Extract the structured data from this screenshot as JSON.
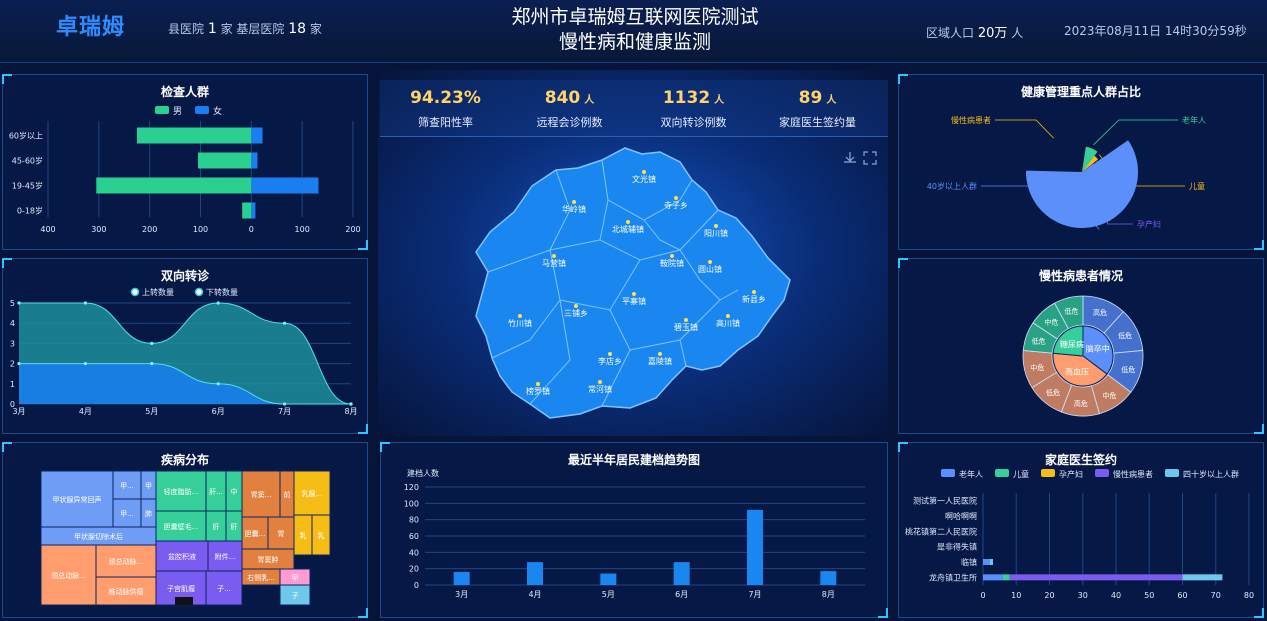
{
  "header": {
    "logo": "卓瑞姆",
    "hosp_prefix": "县医院",
    "county_count": "1",
    "hosp_mid": "家 基层医院",
    "base_count": "18",
    "hosp_suffix": "家",
    "title_line1": "郑州市卓瑞姆互联网医院测试",
    "title_line2": "慢性病和健康监测",
    "pop_prefix": "区域人口",
    "pop_value": "20万",
    "pop_suffix": "人",
    "datetime": "2023年08月11日 14时30分59秒"
  },
  "kpis": [
    {
      "value": "94.23%",
      "unit": "",
      "label": "筛查阳性率"
    },
    {
      "value": "840",
      "unit": "人",
      "label": "远程会诊例数"
    },
    {
      "value": "1132",
      "unit": "人",
      "label": "双向转诊例数"
    },
    {
      "value": "89",
      "unit": "人",
      "label": "家庭医生签约量"
    }
  ],
  "panels": {
    "exam": "检查人群",
    "referral": "双向转诊",
    "disease": "疾病分布",
    "keypop": "健康管理重点人群占比",
    "chronic": "慢性病患者情况",
    "trend": "最近半年居民建档趋势图",
    "family": "家庭医生签约"
  },
  "chart_data": [
    {
      "id": "exam",
      "type": "bar",
      "orientation": "horizontal",
      "title": "检查人群",
      "categories": [
        "60岁以上",
        "45-60岁",
        "19-45岁",
        "0-18岁"
      ],
      "series": [
        {
          "name": "男",
          "values": [
            -225,
            -105,
            -305,
            -18
          ],
          "color": "#29d08f"
        },
        {
          "name": "女",
          "values": [
            22,
            12,
            132,
            8
          ],
          "color": "#1a7ef0"
        }
      ],
      "xticks": [
        "400",
        "300",
        "200",
        "100",
        "0",
        "100",
        "200"
      ],
      "xlim": [
        -400,
        200
      ]
    },
    {
      "id": "referral",
      "type": "area",
      "title": "双向转诊",
      "categories": [
        "3月",
        "4月",
        "5月",
        "6月",
        "7月",
        "8月"
      ],
      "series": [
        {
          "name": "上转数量",
          "values": [
            5,
            5,
            3,
            5,
            4,
            0
          ],
          "color": "#1d8f9c"
        },
        {
          "name": "下转数量",
          "values": [
            2,
            2,
            2,
            1,
            0,
            0
          ],
          "color": "#1a7ef0"
        }
      ],
      "ylim": [
        0,
        5
      ],
      "yticks": [
        "0",
        "1",
        "2",
        "3",
        "4",
        "5"
      ]
    },
    {
      "id": "trend",
      "type": "bar",
      "title": "最近半年居民建档趋势图",
      "ylabel": "建档人数",
      "categories": [
        "3月",
        "4月",
        "5月",
        "6月",
        "7月",
        "8月"
      ],
      "values": [
        16,
        28,
        14,
        28,
        92,
        17
      ],
      "ylim": [
        0,
        120
      ],
      "yticks": [
        "0",
        "20",
        "40",
        "60",
        "80",
        "100",
        "120"
      ]
    },
    {
      "id": "family",
      "type": "bar",
      "orientation": "horizontal",
      "stacked": true,
      "title": "家庭医生签约",
      "categories": [
        "测试第一人民医院",
        "啊哈啊啊",
        "桃花镇第二人民医院",
        "是非得失镇",
        "临镇",
        "龙舟镇卫生所"
      ],
      "series": [
        {
          "name": "老年人",
          "values": [
            0,
            0,
            0,
            0,
            2,
            6
          ],
          "color": "#5b8ff9"
        },
        {
          "name": "儿童",
          "values": [
            0,
            0,
            0,
            0,
            0,
            2
          ],
          "color": "#36cf9a"
        },
        {
          "name": "孕产妇",
          "values": [
            0,
            0,
            0,
            0,
            0,
            0
          ],
          "color": "#f6bd16"
        },
        {
          "name": "慢性病患者",
          "values": [
            0,
            0,
            0,
            0,
            0,
            52
          ],
          "color": "#7a5cf0"
        },
        {
          "name": "四十岁以上人群",
          "values": [
            0,
            0,
            0,
            0,
            1,
            12
          ],
          "color": "#6dc8ec"
        }
      ],
      "xlim": [
        0,
        80
      ],
      "xticks": [
        "0",
        "10",
        "20",
        "30",
        "40",
        "50",
        "60",
        "70",
        "80"
      ]
    },
    {
      "id": "keypop",
      "type": "pie",
      "title": "健康管理重点人群占比",
      "slices": [
        {
          "label": "老年人",
          "value": 8,
          "color": "#36cf9a"
        },
        {
          "label": "儿童",
          "value": 4,
          "color": "#f6bd16"
        },
        {
          "label": "孕产妇",
          "value": 1,
          "color": "#7a5cf0"
        },
        {
          "label": "40岁以上人群",
          "value": 60,
          "color": "#5b8ff9"
        },
        {
          "label": "慢性病患者",
          "value": 27,
          "color": "#ffffff"
        }
      ]
    },
    {
      "id": "chronic",
      "type": "pie",
      "title": "慢性病患者情况",
      "inner": [
        {
          "label": "脑卒中",
          "value": 30,
          "color": "#5b8ff9"
        },
        {
          "label": "高血压",
          "value": 35,
          "color": "#ff9d6e"
        },
        {
          "label": "糖尿病",
          "value": 20,
          "color": "#36cf9a"
        }
      ],
      "outer": [
        "高危",
        "低危",
        "低危",
        "中危",
        "高危",
        "低危",
        "中危",
        "低危",
        "中危",
        "低危"
      ]
    },
    {
      "id": "disease",
      "type": "treemap",
      "title": "疾病分布",
      "labels": [
        "甲状腺异常回声",
        "甲...",
        "甲",
        "甲...",
        "肺",
        "甲状腺切除术后",
        "颈总动脉...",
        "颈总动脉...",
        "椎动脉供瘤",
        "轻度脂肪...",
        "肝...",
        "中",
        "胆囊壁毛...",
        "肝",
        "肝",
        "盆腔积液",
        "附件...",
        "子宫肌瘤",
        "子...",
        "胃窦...",
        "前",
        "胆囊...",
        "胃",
        "胃窦肿",
        "右侧乳...",
        "甲",
        "子",
        "乳腺...",
        "乳",
        "乳"
      ]
    }
  ],
  "map": {
    "towns": [
      "文光镇",
      "华岭镇",
      "寺子乡",
      "北城辅镇",
      "阳川镇",
      "马营镇",
      "鞍院镇",
      "圆山镇",
      "新县乡",
      "三铺乡",
      "平寨镇",
      "竹川镇",
      "碧玉镇",
      "高川镇",
      "李店乡",
      "嘉陵镇",
      "榜罗镇",
      "常河镇"
    ]
  }
}
